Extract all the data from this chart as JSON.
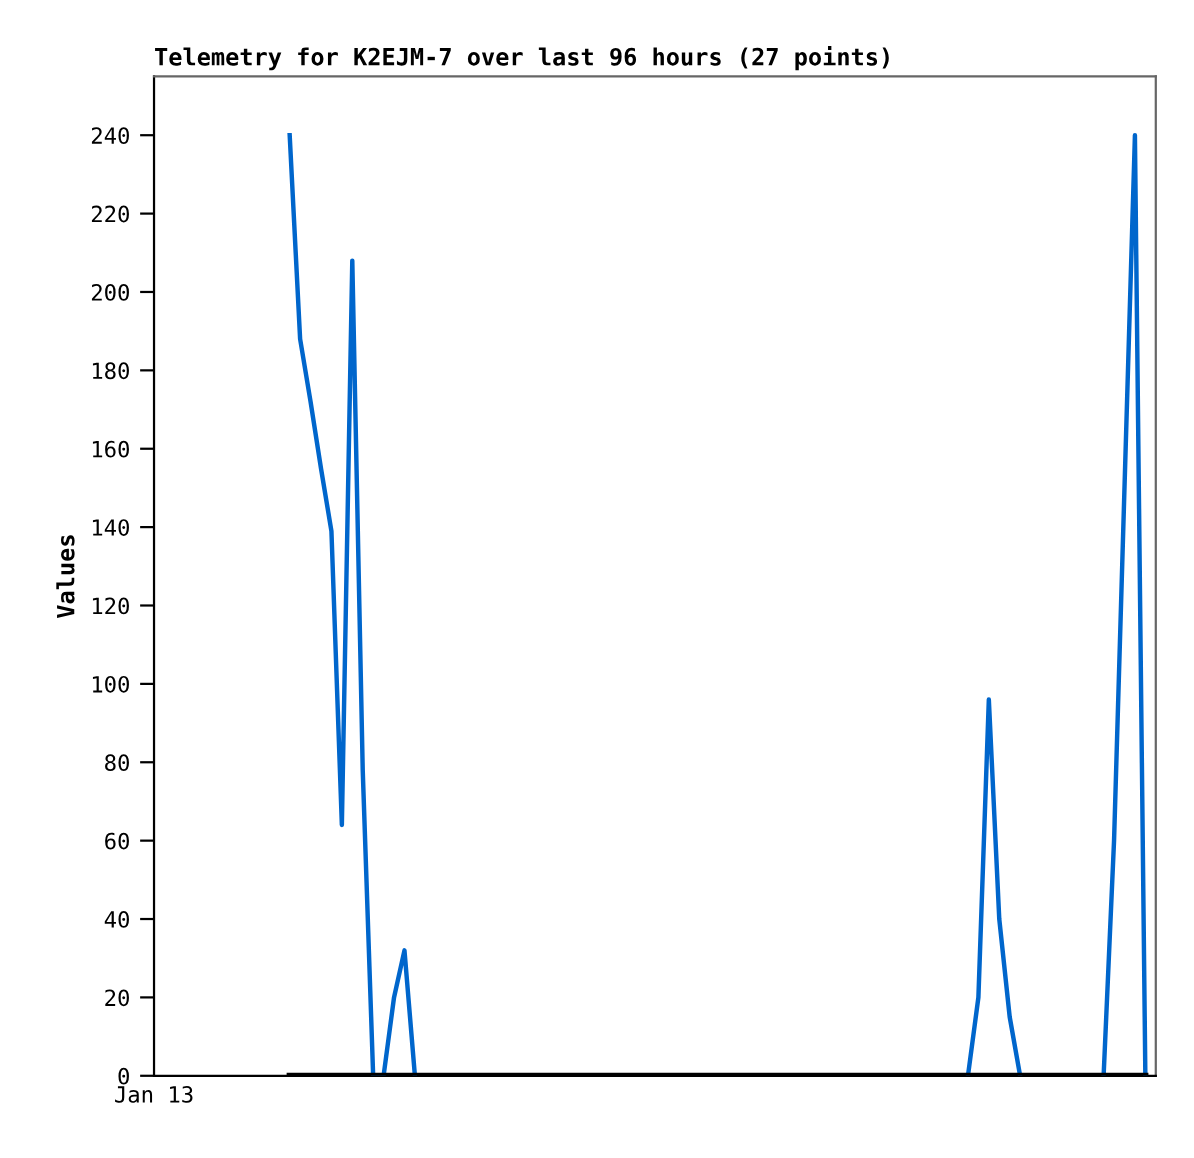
{
  "chart_data": {
    "type": "line",
    "title": "Telemetry for K2EJM-7 over last 96 hours (27 points)",
    "ylabel": "Values",
    "categories": [
      "Jan 13",
      null,
      null,
      null,
      null,
      null,
      null,
      null,
      null,
      null,
      null,
      null,
      null,
      null,
      null,
      null,
      null,
      null,
      null,
      null,
      null,
      null,
      null,
      null,
      null,
      null,
      null,
      null,
      null,
      null,
      null,
      null,
      null,
      null,
      null,
      null,
      null,
      null,
      null,
      null,
      null,
      null,
      null,
      null,
      null,
      null,
      null,
      null,
      null,
      null,
      null,
      null,
      null,
      null,
      null,
      null,
      null,
      null,
      null,
      null,
      null,
      null,
      null,
      null,
      null,
      null,
      null,
      null,
      null,
      null,
      null,
      null,
      null,
      null,
      null,
      null,
      null,
      null,
      null,
      null,
      null,
      null,
      null,
      null,
      null,
      null,
      null,
      null,
      null,
      null,
      null,
      null,
      null,
      null,
      null,
      null,
      null
    ],
    "ylim": [
      0,
      255
    ],
    "yticks": [
      0,
      20,
      40,
      60,
      80,
      100,
      120,
      140,
      160,
      180,
      200,
      220,
      240
    ],
    "grid": false,
    "marker": "none",
    "line_style": "solid",
    "series": [
      {
        "color": "#000000",
        "values": [
          null,
          null,
          null,
          null,
          null,
          null,
          null,
          null,
          null,
          null,
          null,
          null,
          null,
          0,
          0,
          0,
          0,
          0,
          0,
          0,
          0,
          0,
          0,
          0,
          0,
          0,
          0,
          0,
          0,
          0,
          0,
          0,
          0,
          0,
          0,
          0,
          0,
          0,
          0,
          0,
          0,
          0,
          0,
          0,
          0,
          0,
          0,
          0,
          0,
          0,
          0,
          0,
          0,
          0,
          0,
          0,
          0,
          0,
          0,
          0,
          0,
          0,
          0,
          0,
          0,
          0,
          0,
          0,
          0,
          0,
          0,
          0,
          0,
          0,
          0,
          0,
          0,
          0,
          0,
          0,
          0,
          0,
          0,
          0,
          0,
          0,
          0,
          0,
          0,
          0,
          0,
          0,
          0,
          0,
          0,
          0,
          null
        ]
      },
      {
        "color": "#0066cc",
        "values": [
          null,
          null,
          null,
          null,
          null,
          null,
          null,
          null,
          null,
          null,
          null,
          null,
          null,
          240,
          188,
          172,
          155,
          139,
          64,
          208,
          78,
          0,
          0,
          20,
          32,
          0,
          null,
          null,
          null,
          null,
          null,
          null,
          null,
          null,
          null,
          null,
          null,
          null,
          null,
          null,
          null,
          null,
          null,
          null,
          null,
          null,
          null,
          null,
          null,
          null,
          null,
          null,
          null,
          null,
          null,
          null,
          null,
          null,
          null,
          null,
          null,
          null,
          null,
          null,
          null,
          null,
          null,
          null,
          null,
          null,
          null,
          null,
          null,
          null,
          null,
          null,
          null,
          null,
          0,
          20,
          96,
          40,
          15,
          0,
          null,
          null,
          null,
          null,
          null,
          null,
          null,
          0,
          60,
          150,
          240,
          0,
          null
        ]
      }
    ]
  }
}
